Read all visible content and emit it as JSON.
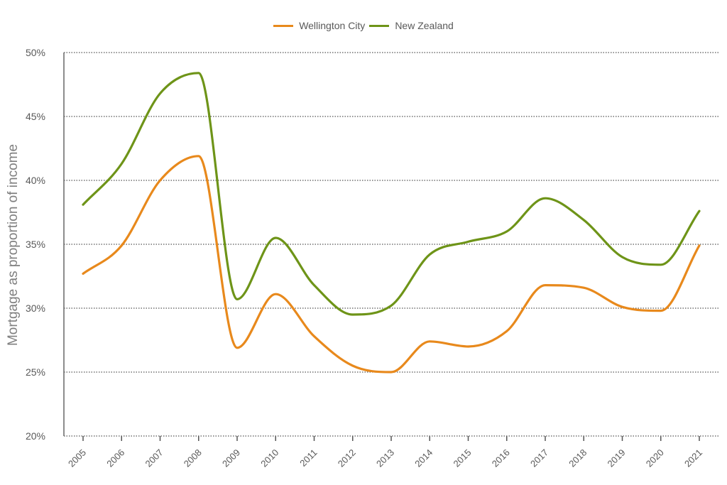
{
  "chart_data": {
    "type": "line",
    "title": "",
    "xlabel": "",
    "ylabel": "Mortgage as proportion of income",
    "ylim": [
      20,
      50
    ],
    "yticks": [
      "20%",
      "25%",
      "30%",
      "35%",
      "40%",
      "45%",
      "50%"
    ],
    "ytick_values": [
      20,
      25,
      30,
      35,
      40,
      45,
      50
    ],
    "grid": "horizontal dotted",
    "legend_position": "top",
    "categories": [
      "2005",
      "2006",
      "2007",
      "2008",
      "2009",
      "2010",
      "2011",
      "2012",
      "2013",
      "2014",
      "2015",
      "2016",
      "2017",
      "2018",
      "2019",
      "2020",
      "2021"
    ],
    "series": [
      {
        "name": "Wellington City",
        "color": "#E8891C",
        "values": [
          32.7,
          34.9,
          40.0,
          41.9,
          26.9,
          31.1,
          27.8,
          25.5,
          25.0,
          27.4,
          27.0,
          28.2,
          31.8,
          31.6,
          30.1,
          29.8,
          34.9
        ]
      },
      {
        "name": "New Zealand",
        "color": "#6E9418",
        "values": [
          38.1,
          41.3,
          46.8,
          48.4,
          30.7,
          35.5,
          31.8,
          29.5,
          30.2,
          34.2,
          35.2,
          36.0,
          38.6,
          36.9,
          34.0,
          33.4,
          37.6
        ]
      }
    ]
  },
  "legend": {
    "items": [
      {
        "label": "Wellington City",
        "color": "#E8891C"
      },
      {
        "label": "New Zealand",
        "color": "#6E9418"
      }
    ]
  }
}
